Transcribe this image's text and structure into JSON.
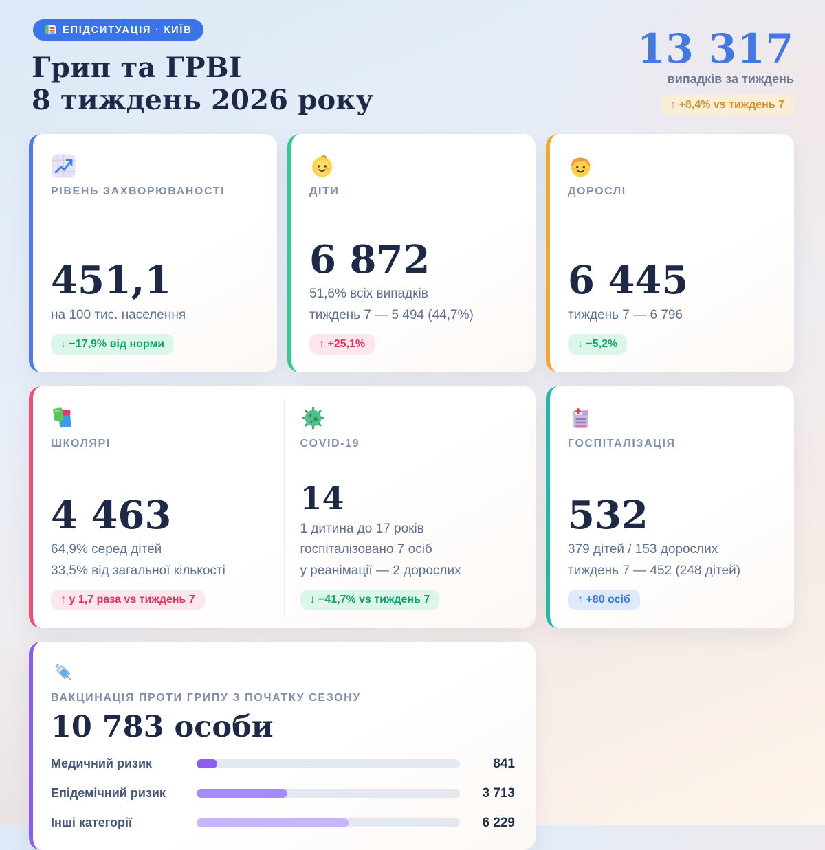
{
  "header": {
    "badge": {
      "icon": "hospital-icon",
      "label": "ЕПІДСИТУАЦІЯ · КИЇВ",
      "bg": "#3b74e8",
      "fg": "#ffffff"
    },
    "title_line1": "Грип та ГРВІ",
    "title_line2": "8 тиждень 2026 року",
    "weekly_total": {
      "value": "13 317",
      "value_color": "#4479e2",
      "caption": "випадків за тиждень",
      "delta": "↑ +8,4% vs тиждень 7",
      "delta_variant": "amber"
    }
  },
  "cards": {
    "morbidity": {
      "icon": "chart-increasing-icon",
      "accent": "#4b7ce8",
      "label": "РІВЕНЬ ЗАХВОРЮВАНОСТІ",
      "value": "451,1",
      "subtitle1": "на 100 тис. населення",
      "badge": {
        "text": "↓ −17,9% від норми",
        "variant": "green"
      }
    },
    "children": {
      "icon": "baby-icon",
      "accent": "#36c98c",
      "label": "ДІТИ",
      "value": "6 872",
      "subtitle1": "51,6% всіх випадків",
      "subtitle2": "тиждень 7 — 5 494 (44,7%)",
      "badge": {
        "text": "↑ +25,1%",
        "variant": "red"
      }
    },
    "adults": {
      "icon": "adult-icon",
      "accent": "#f6a62b",
      "label": "ДОРОСЛІ",
      "value": "6 445",
      "subtitle1": "тиждень 7 — 6 796",
      "badge": {
        "text": "↓ −5,2%",
        "variant": "green"
      }
    },
    "schoolchildren": {
      "icon": "books-icon",
      "accent": "#ef5271",
      "label": "ШКОЛЯРІ",
      "value": "4 463",
      "subtitle1": "64,9% серед дітей",
      "subtitle2": "33,5% від загальної кількості",
      "badge": {
        "text": "↑ у 1,7 раза vs тиждень 7",
        "variant": "red"
      }
    },
    "covid": {
      "icon": "microbe-icon",
      "label": "COVID-19",
      "value": "14",
      "subtitle1": "1 дитина до 17 років",
      "subtitle2": "госпіталізовано 7 осіб",
      "subtitle3": "у реанімації — 2 дорослих",
      "badge": {
        "text": "↓ −41,7% vs тиждень 7",
        "variant": "green"
      }
    },
    "hospitalization": {
      "icon": "hospital-icon",
      "accent": "#1fb9a9",
      "label": "ГОСПІТАЛІЗАЦІЯ",
      "value": "532",
      "subtitle1": "379 дітей / 153 дорослих",
      "subtitle2": "тиждень 7 — 452 (248 дітей)",
      "badge": {
        "text": "↑ +80 осіб",
        "variant": "blue"
      }
    },
    "vaccination": {
      "icon": "syringe-icon",
      "accent": "#8c5cf0",
      "label": "ВАКЦИНАЦІЯ ПРОТИ ГРИПУ З ПОЧАТКУ СЕЗОНУ",
      "value": "10 783 особи"
    }
  },
  "badge_palette": {
    "green": {
      "bg": "#dcf7e9",
      "fg": "#12a26c"
    },
    "red": {
      "bg": "#fde7ed",
      "fg": "#e8325d"
    },
    "blue": {
      "bg": "#dee9fc",
      "fg": "#3c76e8"
    },
    "amber": {
      "bg": "#faeed7",
      "fg": "#d89031"
    }
  },
  "chart_data": {
    "type": "bar",
    "orientation": "horizontal",
    "title": "ВАКЦИНАЦІЯ ПРОТИ ГРИПУ З ПОЧАТКУ СЕЗОНУ",
    "total_label": "10 783 особи",
    "categories": [
      "Медичний ризик",
      "Епідемічний ризик",
      "Інші категорії"
    ],
    "values": [
      841,
      3713,
      6229
    ],
    "value_labels": [
      "841",
      "3 713",
      "6 229"
    ],
    "scale_max": 10783,
    "bar_colors": [
      "#8b5cf6",
      "#a78bfa",
      "#c9b5fb"
    ],
    "track_color": "#e4e8f1",
    "grid": false,
    "legend": false
  }
}
